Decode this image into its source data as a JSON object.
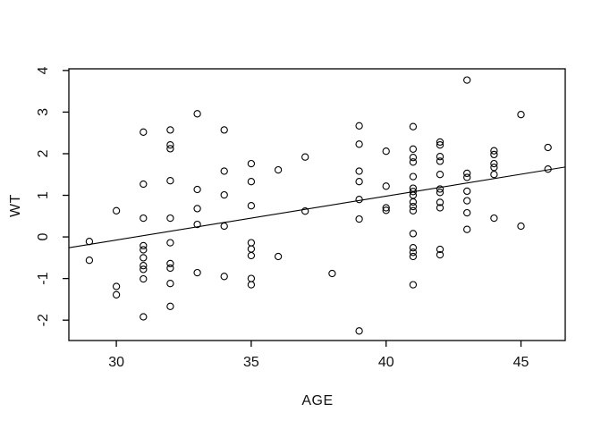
{
  "chart_data": {
    "type": "scatter",
    "title": "",
    "xlabel": "AGE",
    "ylabel": "WT",
    "x_ticks": [
      30,
      35,
      40,
      45
    ],
    "y_ticks": [
      -2,
      -1,
      0,
      1,
      2,
      3,
      4
    ],
    "xlim": [
      28.24,
      46.64
    ],
    "ylim": [
      -2.49,
      4.04
    ],
    "grid": false,
    "legend": "none",
    "marker": "open-circle",
    "colors": {
      "points": "#000000",
      "line": "#000000",
      "axis": "#000000",
      "background": "#ffffff"
    },
    "trend_line": {
      "x1": 28.24,
      "y1": -0.26,
      "x2": 46.64,
      "y2": 1.68
    },
    "points": [
      [
        29,
        -0.11
      ],
      [
        29,
        -0.56
      ],
      [
        30,
        0.63
      ],
      [
        30,
        -1.19
      ],
      [
        30,
        -1.39
      ],
      [
        31,
        2.52
      ],
      [
        31,
        1.27
      ],
      [
        31,
        0.45
      ],
      [
        31,
        -0.21
      ],
      [
        31,
        -0.31
      ],
      [
        31,
        -0.5
      ],
      [
        31,
        -0.69
      ],
      [
        31,
        -0.78
      ],
      [
        31,
        -1.01
      ],
      [
        31,
        -1.92
      ],
      [
        32,
        2.57
      ],
      [
        32,
        2.21
      ],
      [
        32,
        2.12
      ],
      [
        32,
        1.35
      ],
      [
        32,
        0.45
      ],
      [
        32,
        -0.14
      ],
      [
        32,
        -0.64
      ],
      [
        32,
        -0.75
      ],
      [
        32,
        -1.12
      ],
      [
        32,
        -1.67
      ],
      [
        33,
        2.96
      ],
      [
        33,
        1.14
      ],
      [
        33,
        0.68
      ],
      [
        33,
        0.3
      ],
      [
        33,
        -0.86
      ],
      [
        34,
        2.57
      ],
      [
        34,
        1.58
      ],
      [
        34,
        1.01
      ],
      [
        34,
        0.26
      ],
      [
        34,
        -0.95
      ],
      [
        35,
        1.76
      ],
      [
        35,
        1.33
      ],
      [
        35,
        0.75
      ],
      [
        35,
        -0.14
      ],
      [
        35,
        -0.29
      ],
      [
        35,
        -0.45
      ],
      [
        35,
        -1.0
      ],
      [
        35,
        -1.15
      ],
      [
        36,
        1.61
      ],
      [
        36,
        -0.47
      ],
      [
        37,
        1.92
      ],
      [
        37,
        0.62
      ],
      [
        38,
        -0.88
      ],
      [
        39,
        2.67
      ],
      [
        39,
        2.23
      ],
      [
        39,
        1.58
      ],
      [
        39,
        1.33
      ],
      [
        39,
        0.9
      ],
      [
        39,
        0.43
      ],
      [
        39,
        -2.26
      ],
      [
        40,
        2.06
      ],
      [
        40,
        1.22
      ],
      [
        40,
        0.7
      ],
      [
        40,
        0.64
      ],
      [
        41,
        2.65
      ],
      [
        41,
        2.11
      ],
      [
        41,
        1.91
      ],
      [
        41,
        1.8
      ],
      [
        41,
        1.45
      ],
      [
        41,
        1.17
      ],
      [
        41,
        1.09
      ],
      [
        41,
        1.0
      ],
      [
        41,
        0.84
      ],
      [
        41,
        0.73
      ],
      [
        41,
        0.63
      ],
      [
        41,
        0.08
      ],
      [
        41,
        -0.26
      ],
      [
        41,
        -0.37
      ],
      [
        41,
        -0.47
      ],
      [
        41,
        -1.15
      ],
      [
        42,
        2.28
      ],
      [
        42,
        2.21
      ],
      [
        42,
        1.93
      ],
      [
        42,
        1.82
      ],
      [
        42,
        1.5
      ],
      [
        42,
        1.15
      ],
      [
        42,
        1.07
      ],
      [
        42,
        0.83
      ],
      [
        42,
        0.7
      ],
      [
        42,
        -0.3
      ],
      [
        42,
        -0.43
      ],
      [
        43,
        3.77
      ],
      [
        43,
        1.53
      ],
      [
        43,
        1.43
      ],
      [
        43,
        1.1
      ],
      [
        43,
        0.87
      ],
      [
        43,
        0.58
      ],
      [
        43,
        0.18
      ],
      [
        44,
        2.07
      ],
      [
        44,
        1.98
      ],
      [
        44,
        1.76
      ],
      [
        44,
        1.67
      ],
      [
        44,
        1.5
      ],
      [
        44,
        0.45
      ],
      [
        45,
        2.94
      ],
      [
        45,
        0.26
      ],
      [
        46,
        2.15
      ],
      [
        46,
        1.63
      ]
    ]
  }
}
